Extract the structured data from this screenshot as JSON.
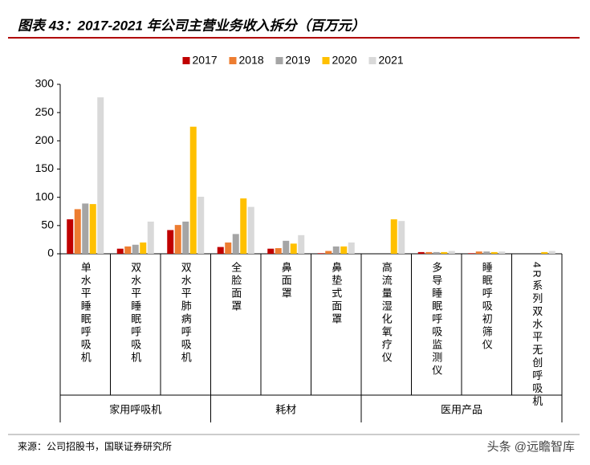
{
  "chart_data": {
    "type": "bar",
    "title": "图表 43：2017-2021 年公司主营业务收入拆分（百万元）",
    "source": "来源：公司招股书，国联证券研究所",
    "watermark": "头条 @远瞻智库",
    "categories": [
      "单水平睡眠呼吸机",
      "双水平睡眠呼吸机",
      "双水平肺病呼吸机",
      "全脸面罩",
      "鼻面罩",
      "鼻垫式面罩",
      "高流量湿化氧疗仪",
      "多导睡眠呼吸监测仪",
      "睡眠呼吸初筛仪",
      "4R系列双水平无创呼吸机"
    ],
    "groups": [
      {
        "name": "家用呼吸机",
        "count": 3
      },
      {
        "name": "耗材",
        "count": 3
      },
      {
        "name": "医用产品",
        "count": 4
      }
    ],
    "series": [
      {
        "name": "2017",
        "color": "#c00000",
        "values": [
          61,
          9,
          42,
          12,
          9,
          1,
          null,
          3,
          1,
          null
        ]
      },
      {
        "name": "2018",
        "color": "#ed7d31",
        "values": [
          79,
          13,
          51,
          20,
          10,
          5,
          null,
          3,
          4,
          null
        ]
      },
      {
        "name": "2019",
        "color": "#a5a5a5",
        "values": [
          89,
          16,
          57,
          35,
          23,
          13,
          null,
          3,
          4,
          null
        ]
      },
      {
        "name": "2020",
        "color": "#ffc000",
        "values": [
          88,
          20,
          225,
          98,
          18,
          13,
          61,
          3,
          3,
          3
        ]
      },
      {
        "name": "2021",
        "color": "#d9d9d9",
        "values": [
          277,
          57,
          101,
          83,
          33,
          20,
          58,
          5,
          4,
          5
        ]
      }
    ],
    "ylim": [
      0,
      300
    ],
    "yticks": [
      0,
      50,
      100,
      150,
      200,
      250,
      300
    ],
    "grid": false
  }
}
